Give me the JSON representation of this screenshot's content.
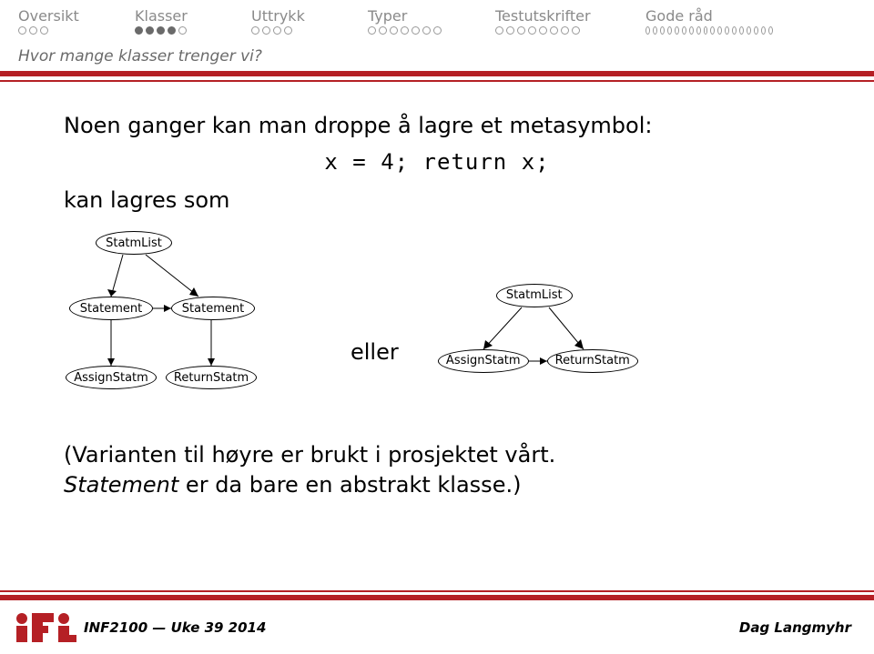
{
  "nav": {
    "items": [
      {
        "label": "Oversikt",
        "total": 3,
        "filled": 0
      },
      {
        "label": "Klasser",
        "total": 5,
        "filled": 4
      },
      {
        "label": "Uttrykk",
        "total": 4,
        "filled": 0
      },
      {
        "label": "Typer",
        "total": 7,
        "filled": 0
      },
      {
        "label": "Testutskrifter",
        "total": 8,
        "filled": 0
      },
      {
        "label": "Gode råd",
        "total": 18,
        "filled": 0
      }
    ]
  },
  "subtitle": "Hvor mange klasser trenger vi?",
  "body1": "Noen ganger kan man droppe å lagre et metasymbol:",
  "code": "x = 4; return x;",
  "body2": "kan lagres som",
  "eller": "eller",
  "diagram1": {
    "n1": "StatmList",
    "n2": "Statement",
    "n3": "Statement",
    "n4": "AssignStatm",
    "n5": "ReturnStatm"
  },
  "diagram2": {
    "n1": "StatmList",
    "n2": "AssignStatm",
    "n3": "ReturnStatm"
  },
  "closing_line1": "(Varianten til høyre er brukt i prosjektet vårt.",
  "closing_italic": "Statement",
  "closing_line2": " er da bare en abstrakt klasse.)",
  "footer": {
    "left": "INF2100 — Uke 39 2014",
    "right": "Dag Langmyhr"
  },
  "colors": {
    "accent": "#b52025",
    "nav_text": "#8a8a8a"
  }
}
